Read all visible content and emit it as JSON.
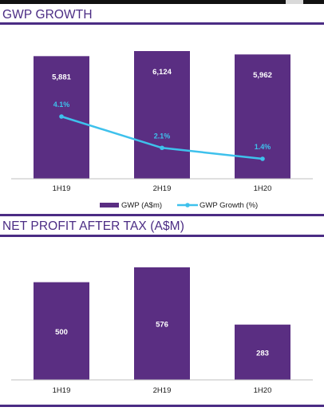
{
  "header": {
    "gwp_title": "GWP GROWTH",
    "npat_title": "NET PROFIT AFTER TAX (A$M)"
  },
  "colors": {
    "bar": "#5a2e82",
    "line": "#3ec1ec",
    "title": "#4b2c84"
  },
  "chart_data": [
    {
      "type": "bar",
      "title": "GWP GROWTH",
      "categories": [
        "1H19",
        "2H19",
        "1H20"
      ],
      "series": [
        {
          "name": "GWP (A$m)",
          "type": "bar",
          "values": [
            5881,
            6124,
            5962
          ],
          "labels": [
            "5,881",
            "6,124",
            "5,962"
          ]
        },
        {
          "name": "GWP Growth (%)",
          "type": "line",
          "values": [
            4.1,
            2.1,
            1.4
          ],
          "labels": [
            "4.1%",
            "2.1%",
            "1.4%"
          ]
        }
      ],
      "legend_position": "bottom",
      "grid": false
    },
    {
      "type": "bar",
      "title": "NET PROFIT AFTER TAX (A$M)",
      "categories": [
        "1H19",
        "2H19",
        "1H20"
      ],
      "series": [
        {
          "values": [
            500,
            576,
            283
          ],
          "labels": [
            "500",
            "576",
            "283"
          ]
        }
      ],
      "legend_position": "none",
      "grid": false
    }
  ]
}
